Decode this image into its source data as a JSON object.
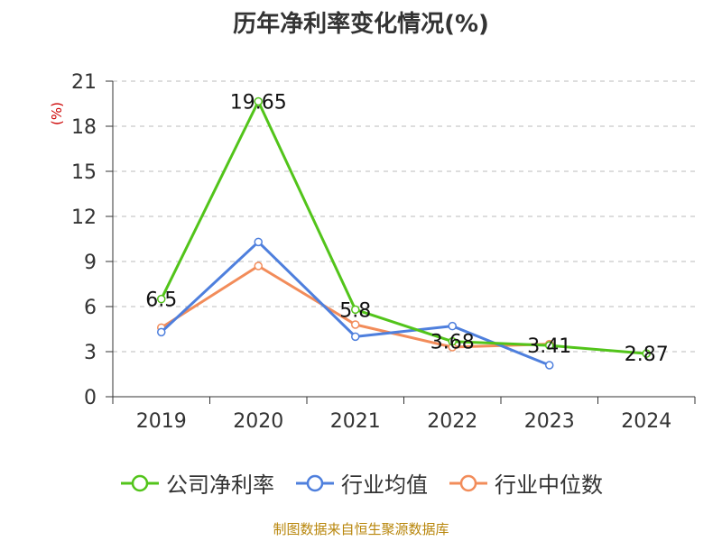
{
  "chart_data": {
    "type": "line",
    "title": "历年净利率变化情况(%)",
    "ylabel": "(%)",
    "xlabel": "",
    "ylim": [
      0,
      21
    ],
    "yticks": [
      0,
      3,
      6,
      9,
      12,
      15,
      18,
      21
    ],
    "categories": [
      "2019",
      "2020",
      "2021",
      "2022",
      "2023",
      "2024"
    ],
    "series": [
      {
        "name": "公司净利率",
        "color": "#52c41a",
        "values": [
          6.5,
          19.65,
          5.8,
          3.68,
          3.41,
          2.87
        ],
        "labels": [
          "6.5",
          "19.65",
          "5.8",
          "3.68",
          "3.41",
          "2.87"
        ]
      },
      {
        "name": "行业均值",
        "color": "#4e7fdd",
        "values": [
          4.3,
          10.3,
          4.0,
          4.7,
          2.1,
          null
        ]
      },
      {
        "name": "行业中位数",
        "color": "#f28c5a",
        "values": [
          4.6,
          8.7,
          4.8,
          3.3,
          3.5,
          null
        ]
      }
    ],
    "grid": true,
    "legend_position": "bottom"
  },
  "source": "制图数据来自恒生聚源数据库"
}
